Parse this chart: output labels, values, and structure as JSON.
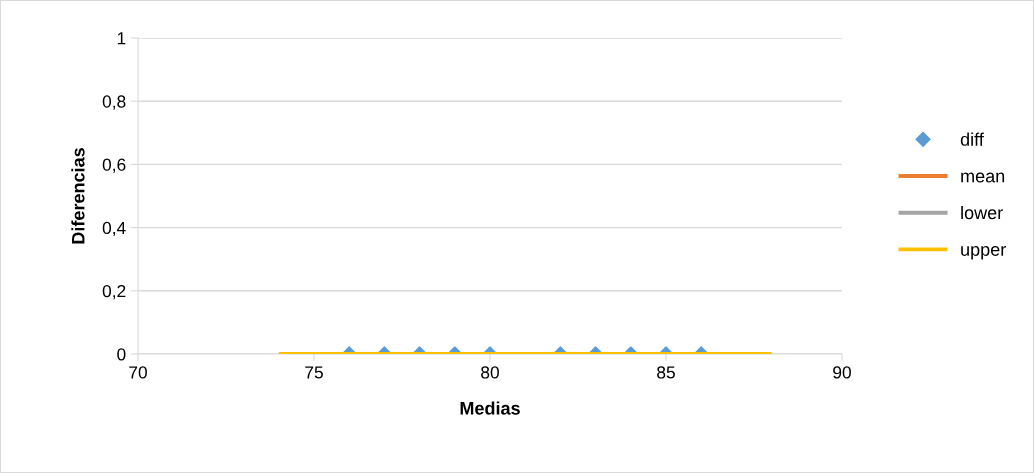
{
  "chart_data": {
    "type": "scatter",
    "xlabel": "Medias",
    "ylabel": "Diferencias",
    "xlim": [
      70,
      90
    ],
    "xticks": [
      70,
      75,
      80,
      85,
      90
    ],
    "ylim": [
      0,
      1
    ],
    "yticks": [
      0,
      {
        "value": 0.2,
        "label": "0,2"
      },
      {
        "value": 0.4,
        "label": "0,4"
      },
      {
        "value": 0.6,
        "label": "0,6"
      },
      {
        "value": 0.8,
        "label": "0,8"
      },
      1
    ],
    "grid": "y",
    "legend": "right",
    "series": [
      {
        "name": "diff",
        "marker": "diamond",
        "color": "#5b9bd5",
        "x": [
          76,
          77,
          78,
          79,
          80,
          82,
          83,
          84,
          85,
          86
        ],
        "values": [
          0,
          0,
          0,
          0,
          0,
          0,
          0,
          0,
          0,
          0
        ]
      },
      {
        "name": "mean",
        "type": "line",
        "marker": "none",
        "color": "#ed7d31"
      },
      {
        "name": "lower",
        "type": "line",
        "marker": "none",
        "color": "#a5a5a5"
      },
      {
        "name": "upper",
        "type": "line",
        "marker": "none",
        "color": "#ffc000",
        "x": [
          74,
          88
        ],
        "values": [
          0,
          0
        ]
      }
    ]
  }
}
